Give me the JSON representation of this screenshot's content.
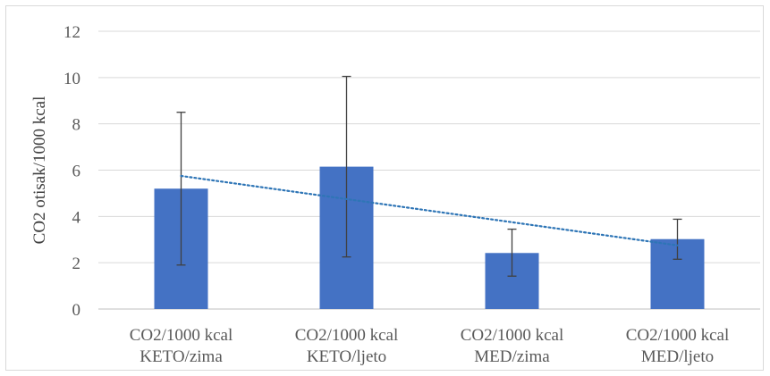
{
  "chart_data": {
    "type": "bar",
    "title": "",
    "xlabel": "",
    "ylabel": "CO2 otisak/1000 kcal",
    "ylim": [
      0,
      12
    ],
    "yticks": [
      0,
      2,
      4,
      6,
      8,
      10,
      12
    ],
    "grid": true,
    "legend": "none",
    "categories": [
      [
        "CO2/1000 kcal",
        "KETO/zima"
      ],
      [
        "CO2/1000 kcal",
        "KETO/ljeto"
      ],
      [
        "CO2/1000 kcal",
        "MED/zima"
      ],
      [
        "CO2/1000 kcal",
        "MED/ljeto"
      ]
    ],
    "values": [
      5.2,
      6.15,
      2.42,
      3.02
    ],
    "error_bars": [
      {
        "low": 1.9,
        "high": 8.5
      },
      {
        "low": 2.25,
        "high": 10.05
      },
      {
        "low": 1.42,
        "high": 3.45
      },
      {
        "low": 2.15,
        "high": 3.88
      }
    ],
    "trendline": {
      "type": "linear",
      "style": "dotted",
      "start": 5.75,
      "end": 2.75
    },
    "colors": {
      "bar": "#4472c4",
      "trendline": "#2e75b6",
      "error_bar": "#404040",
      "grid": "#d9d9d9",
      "axis": "#bfbfbf",
      "text": "#595959"
    }
  }
}
